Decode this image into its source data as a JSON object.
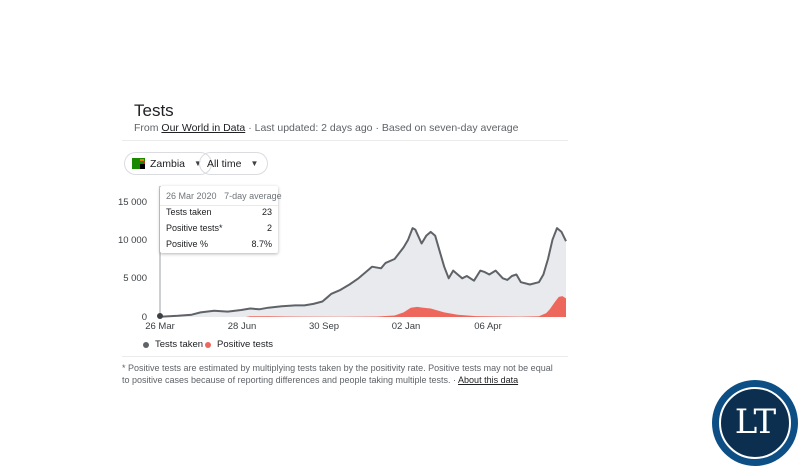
{
  "title": "Tests",
  "source": {
    "prefix": "From",
    "link": "Our World in Data",
    "rest": "· Last updated: 2 days ago · Based on seven-day average"
  },
  "controls": {
    "country": "Zambia",
    "range": "All time"
  },
  "tooltip": {
    "date": "26 Mar 2020",
    "subtitle": "7-day average",
    "rows": [
      {
        "label": "Tests taken",
        "value": "23"
      },
      {
        "label": "Positive tests*",
        "value": "2"
      },
      {
        "label": "Positive %",
        "value": "8.7%"
      }
    ]
  },
  "legend": {
    "tests": "Tests taken",
    "positive": "Positive tests"
  },
  "footnote": {
    "text": "* Positive tests are estimated by multiplying tests taken by the positivity rate. Positive tests may not be equal to positive cases because of reporting differences and people taking multiple tests. ·",
    "link": "About this data"
  },
  "badge": {
    "text": "LT"
  },
  "colors": {
    "tests_line": "#5f6368",
    "tests_area": "#e8eaed",
    "positive": "#ee675c",
    "badge": "#0d4f84"
  },
  "chart_data": {
    "type": "area",
    "x_tick_labels": [
      "26 Mar",
      "28 Jun",
      "30 Sep",
      "02 Jan",
      "06 Apr"
    ],
    "x_tick_days": [
      0,
      94,
      188,
      282,
      376
    ],
    "y_tick_labels": [
      "15 000",
      "10 000",
      "5 000",
      "0"
    ],
    "y_tick_values": [
      15000,
      10000,
      5000,
      0
    ],
    "ylim": [
      0,
      15000
    ],
    "xlim": [
      0,
      450
    ],
    "series": [
      {
        "name": "Tests taken",
        "points": [
          [
            0,
            23
          ],
          [
            20,
            150
          ],
          [
            35,
            300
          ],
          [
            45,
            600
          ],
          [
            60,
            800
          ],
          [
            75,
            700
          ],
          [
            90,
            900
          ],
          [
            100,
            1100
          ],
          [
            110,
            1000
          ],
          [
            120,
            1200
          ],
          [
            135,
            1400
          ],
          [
            150,
            1500
          ],
          [
            160,
            1500
          ],
          [
            170,
            1700
          ],
          [
            180,
            2000
          ],
          [
            185,
            2500
          ],
          [
            190,
            3000
          ],
          [
            200,
            3500
          ],
          [
            210,
            4200
          ],
          [
            220,
            5000
          ],
          [
            230,
            6000
          ],
          [
            235,
            6500
          ],
          [
            245,
            6300
          ],
          [
            250,
            7000
          ],
          [
            260,
            7500
          ],
          [
            270,
            9000
          ],
          [
            275,
            10000
          ],
          [
            280,
            11500
          ],
          [
            283,
            11300
          ],
          [
            290,
            9500
          ],
          [
            295,
            10500
          ],
          [
            300,
            11000
          ],
          [
            305,
            10500
          ],
          [
            310,
            8500
          ],
          [
            315,
            6500
          ],
          [
            320,
            5000
          ],
          [
            325,
            6000
          ],
          [
            330,
            5500
          ],
          [
            335,
            5000
          ],
          [
            340,
            5300
          ],
          [
            348,
            4700
          ],
          [
            355,
            6000
          ],
          [
            360,
            5800
          ],
          [
            365,
            5500
          ],
          [
            372,
            6000
          ],
          [
            380,
            5000
          ],
          [
            385,
            4800
          ],
          [
            390,
            5300
          ],
          [
            395,
            5500
          ],
          [
            400,
            4500
          ],
          [
            410,
            4200
          ],
          [
            420,
            4500
          ],
          [
            425,
            5500
          ],
          [
            430,
            7500
          ],
          [
            435,
            10000
          ],
          [
            440,
            11500
          ],
          [
            445,
            11000
          ],
          [
            450,
            9800
          ]
        ]
      },
      {
        "name": "Positive tests",
        "points": [
          [
            0,
            2
          ],
          [
            95,
            0
          ],
          [
            100,
            100
          ],
          [
            120,
            100
          ],
          [
            140,
            60
          ],
          [
            160,
            50
          ],
          [
            200,
            30
          ],
          [
            240,
            60
          ],
          [
            260,
            200
          ],
          [
            270,
            600
          ],
          [
            278,
            1200
          ],
          [
            285,
            1300
          ],
          [
            292,
            1200
          ],
          [
            300,
            1100
          ],
          [
            315,
            600
          ],
          [
            330,
            300
          ],
          [
            350,
            120
          ],
          [
            370,
            80
          ],
          [
            400,
            50
          ],
          [
            420,
            100
          ],
          [
            428,
            500
          ],
          [
            432,
            1000
          ],
          [
            438,
            2000
          ],
          [
            442,
            2600
          ],
          [
            446,
            2700
          ],
          [
            450,
            2400
          ]
        ]
      }
    ],
    "grid": false,
    "legend_position": "bottom-left"
  }
}
